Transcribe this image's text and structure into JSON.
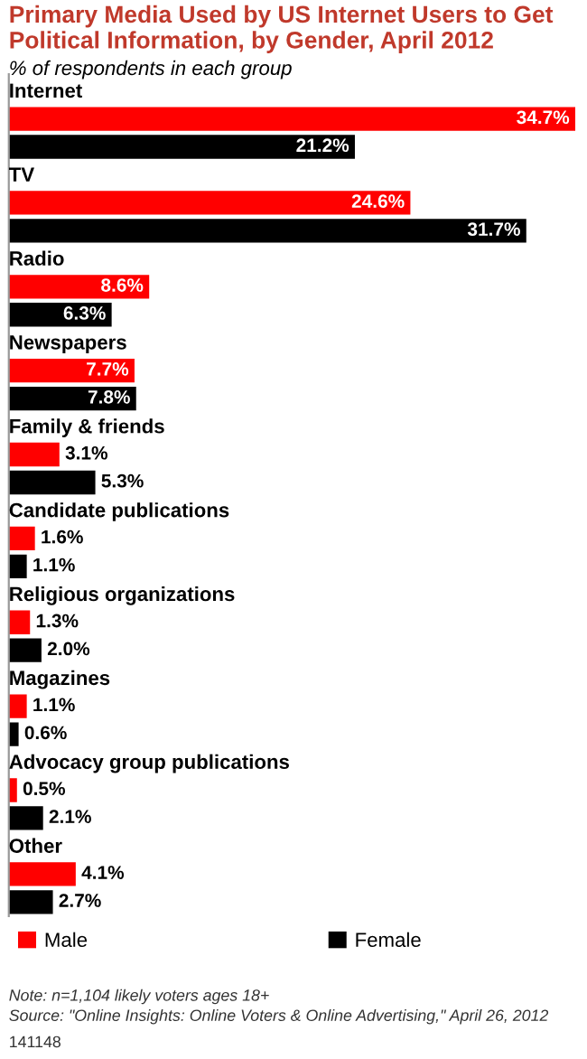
{
  "chart_data": {
    "type": "bar",
    "orientation": "horizontal",
    "title": "Primary Media Used by US Internet Users to Get Political Information, by Gender, April 2012",
    "subtitle": "% of respondents in each group",
    "categories": [
      "Internet",
      "TV",
      "Radio",
      "Newspapers",
      "Family & friends",
      "Candidate publications",
      "Religious organizations",
      "Magazines",
      "Advocacy group publications",
      "Other"
    ],
    "series": [
      {
        "name": "Male",
        "color": "#ff0000",
        "values": [
          34.7,
          24.6,
          8.6,
          7.7,
          3.1,
          1.6,
          1.3,
          1.1,
          0.5,
          4.1
        ],
        "value_labels": [
          "34.7%",
          "24.6%",
          "8.6%",
          "7.7%",
          "3.1%",
          "1.6%",
          "1.3%",
          "1.1%",
          "0.5%",
          "4.1%"
        ]
      },
      {
        "name": "Female",
        "color": "#000000",
        "values": [
          21.2,
          31.7,
          6.3,
          7.8,
          5.3,
          1.1,
          2.0,
          0.6,
          2.1,
          2.7
        ],
        "value_labels": [
          "21.2%",
          "31.7%",
          "6.3%",
          "7.8%",
          "5.3%",
          "1.1%",
          "2.0%",
          "0.6%",
          "2.1%",
          "2.7%"
        ]
      }
    ],
    "legend": "bottom",
    "annotations": [
      "Note: n=1,104 likely voters ages 18+",
      "Source: \"Online Insights: Online Voters & Online Advertising,\" April 26, 2012",
      "141148"
    ]
  }
}
